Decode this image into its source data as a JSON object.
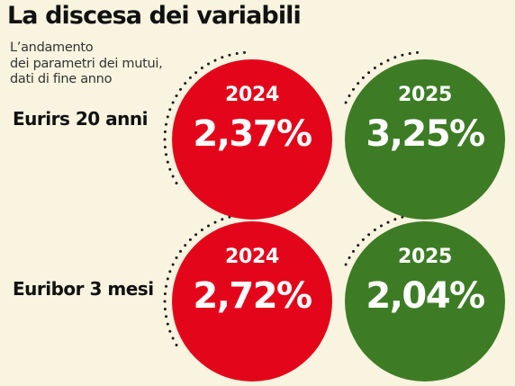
{
  "title": "La discesa dei variabili",
  "subtitle_lines": [
    "L’andamento",
    "dei parametri dei mutui,",
    "dati di fine anno"
  ],
  "colors": {
    "decrease": "#e3061b",
    "increase": "#3d7c25",
    "background": "#f8f4df"
  },
  "chart_data": {
    "type": "table",
    "title": "La discesa dei variabili",
    "subtitle": "L’andamento dei parametri dei mutui, dati di fine anno",
    "columns": [
      "2024",
      "2025"
    ],
    "rows": [
      {
        "label": "Eurirs 20 anni",
        "values": [
          "2,37%",
          "3,25%"
        ],
        "numeric": [
          2.37,
          3.25
        ],
        "colors": [
          "red",
          "green"
        ]
      },
      {
        "label": "Euribor 3 mesi",
        "values": [
          "2,72%",
          "2,04%"
        ],
        "numeric": [
          2.72,
          2.04
        ],
        "colors": [
          "red",
          "green"
        ]
      }
    ]
  }
}
